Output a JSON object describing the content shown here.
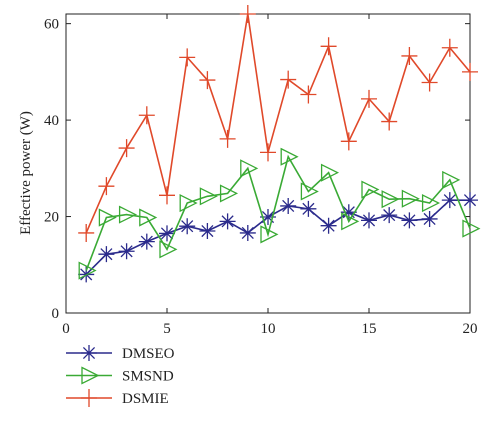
{
  "chart_data": {
    "type": "line",
    "title": "",
    "xlabel": "",
    "ylabel": "Effective power (W)",
    "xlim": [
      0,
      20
    ],
    "ylim": [
      0,
      62
    ],
    "x_ticks": [
      0,
      5,
      10,
      15,
      20
    ],
    "y_ticks": [
      0,
      20,
      40,
      60
    ],
    "x_tick_labels": [
      "0",
      "5",
      "10",
      "15",
      "20"
    ],
    "y_tick_labels": [
      "0",
      "20",
      "40",
      "60"
    ],
    "grid": false,
    "legend_position": "bottom-left, outside plot",
    "x": [
      1,
      2,
      3,
      4,
      5,
      6,
      7,
      8,
      9,
      10,
      11,
      12,
      13,
      14,
      15,
      16,
      17,
      18,
      19,
      20
    ],
    "series": [
      {
        "name": "DMSEO",
        "color": "#2b2b8c",
        "marker": "asterisk",
        "values": [
          8,
          12.2,
          12.8,
          14.8,
          16.5,
          18,
          17,
          19,
          16.6,
          19.9,
          22.2,
          21.6,
          18.1,
          20.9,
          19.2,
          20.3,
          19.2,
          19.5,
          23.4,
          23.4
        ]
      },
      {
        "name": "SMSND",
        "color": "#3aaa35",
        "marker": "triangle-right",
        "values": [
          8.8,
          19.8,
          20.4,
          19.8,
          13.2,
          22.8,
          24.2,
          24.8,
          30,
          16.3,
          32.4,
          25.2,
          29.1,
          19,
          25.6,
          23.6,
          23.7,
          22.8,
          27.6,
          17.5
        ]
      },
      {
        "name": "DSMIE",
        "color": "#e0492a",
        "marker": "plus",
        "values": [
          16.6,
          26.3,
          34.2,
          41,
          24.4,
          53,
          48.3,
          36.1,
          62,
          33.3,
          48.4,
          45.3,
          55.3,
          35.6,
          44.4,
          39.7,
          53.3,
          47.8,
          55,
          50
        ]
      }
    ]
  }
}
